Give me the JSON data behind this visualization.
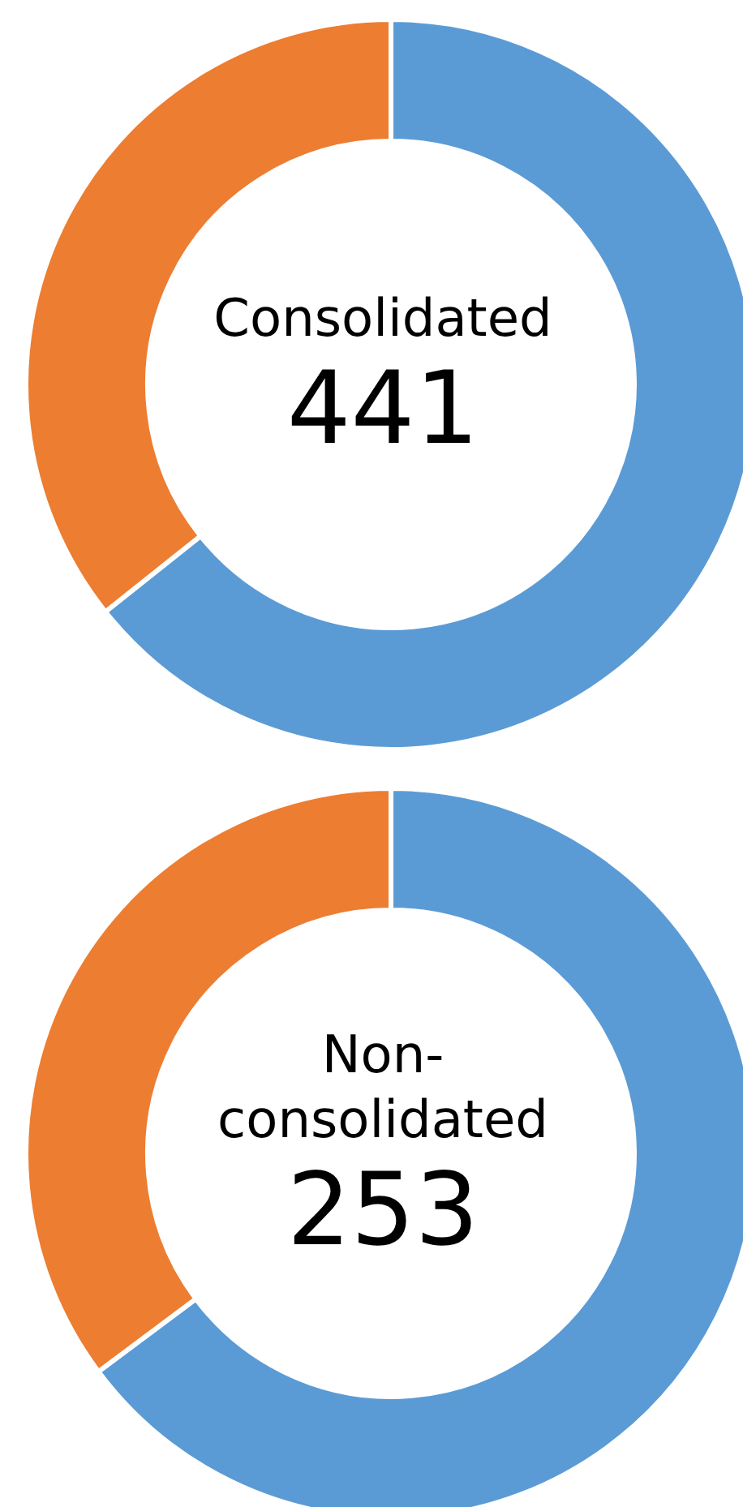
{
  "chart_data": [
    {
      "type": "donut",
      "title": "Consolidated",
      "annotations": [
        "441"
      ],
      "categories": [
        null,
        null
      ],
      "values": [
        64.3,
        35.7
      ],
      "colors": [
        "#5b9bd5",
        "#ed7d31"
      ],
      "legend": false
    },
    {
      "type": "donut",
      "title": "Non-consolidated",
      "annotations": [
        "253"
      ],
      "categories": [
        null,
        null
      ],
      "values": [
        64.8,
        35.2
      ],
      "colors": [
        "#5b9bd5",
        "#ed7d31"
      ],
      "legend": false
    }
  ]
}
